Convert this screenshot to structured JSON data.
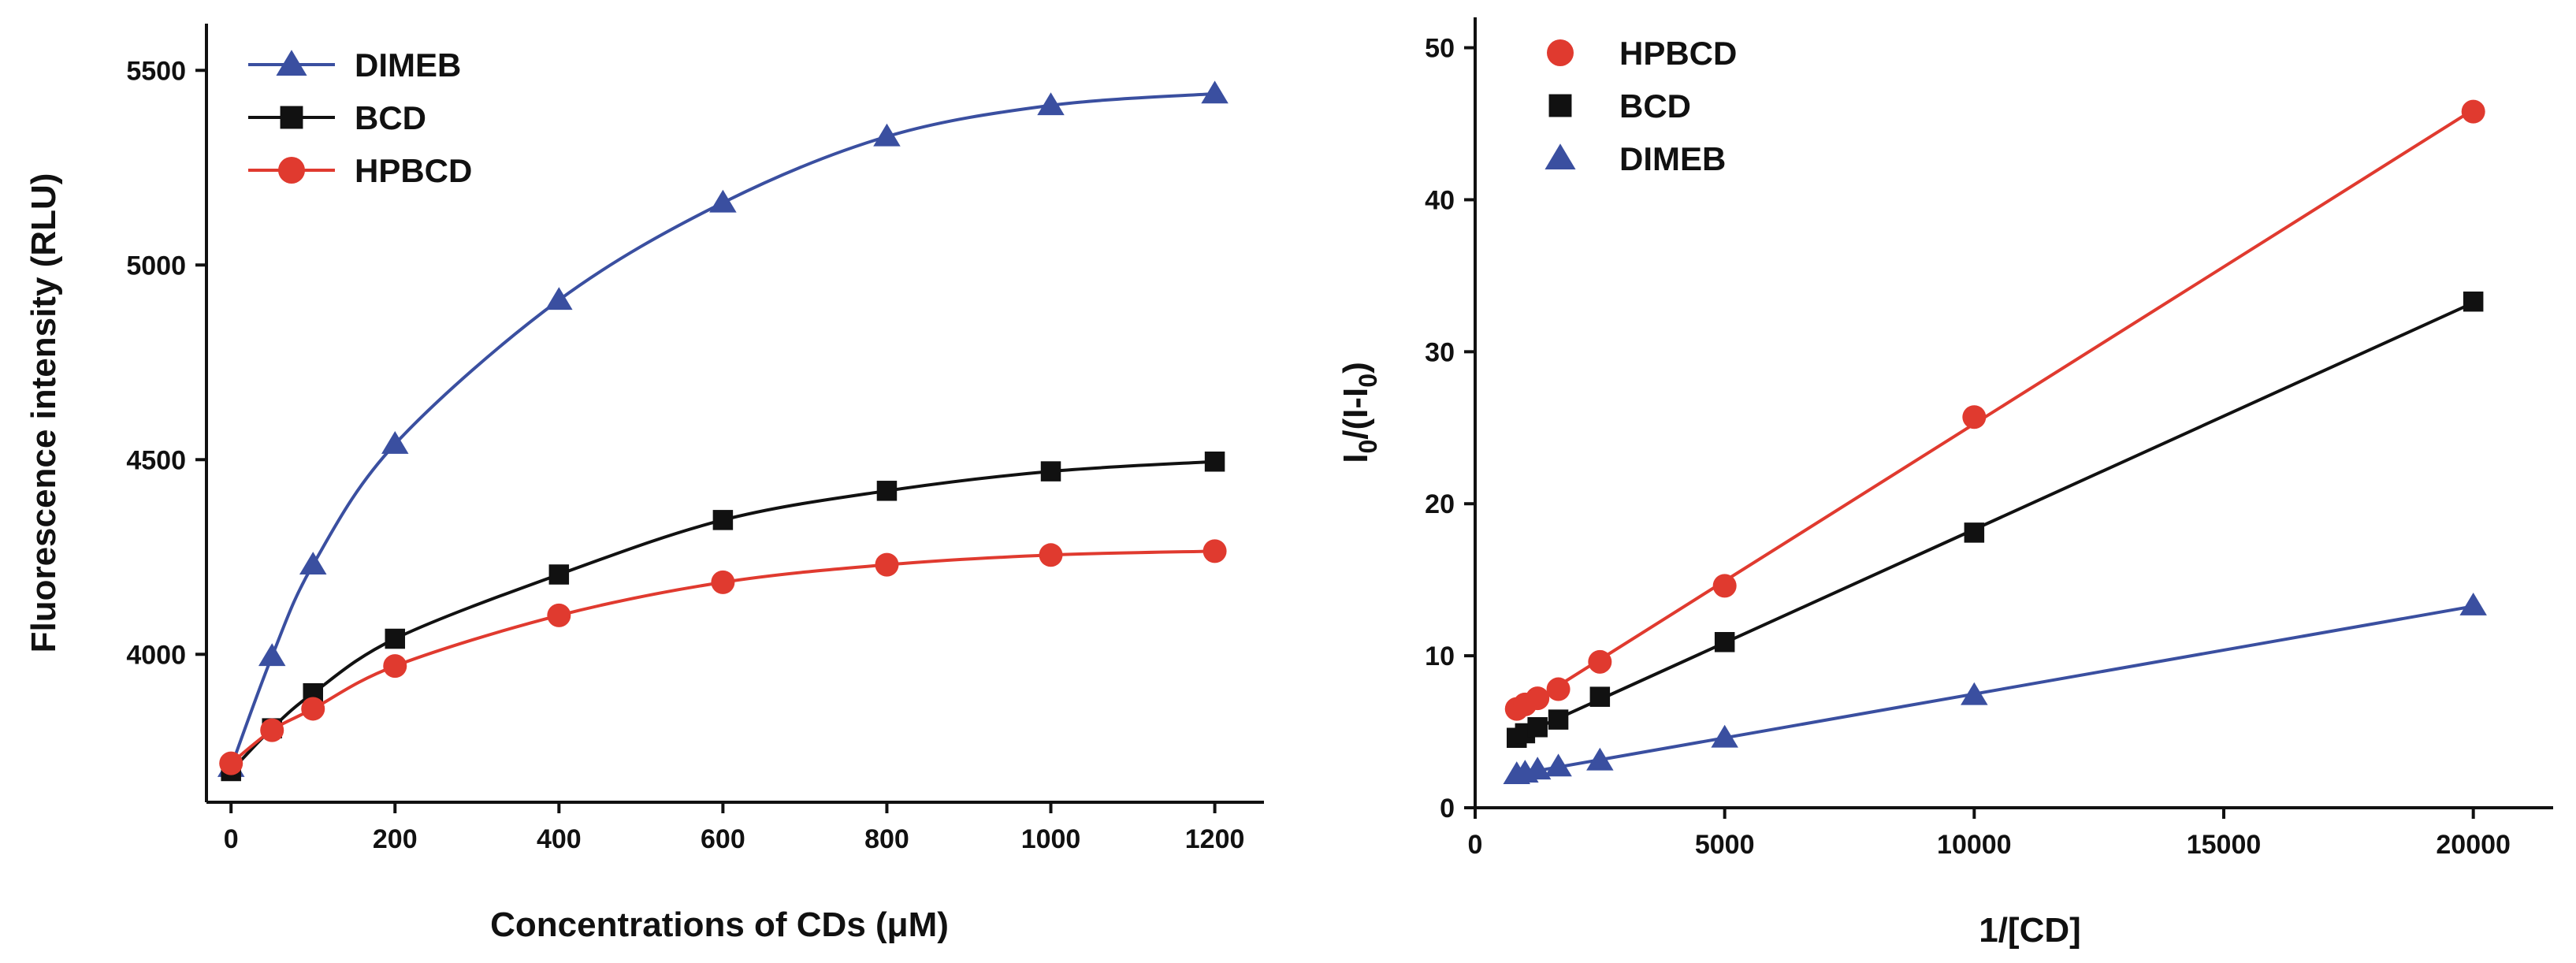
{
  "chart_data": [
    {
      "id": "left",
      "type": "line",
      "title": "",
      "xlabel": "Concentrations of CDs (μM)",
      "ylabel": "Fluorescence intensity (RLU)",
      "xlim": [
        -30,
        1260
      ],
      "ylim": [
        3620,
        5620
      ],
      "xticks": [
        0,
        200,
        400,
        600,
        800,
        1000,
        1200
      ],
      "yticks": [
        4000,
        4500,
        5000,
        5500
      ],
      "grid": false,
      "legend_position": "top-left",
      "series": [
        {
          "name": "DIMEB",
          "color": "#3a4fa0",
          "marker": "triangle",
          "x": [
            0,
            50,
            100,
            200,
            400,
            600,
            800,
            1000,
            1200
          ],
          "y": [
            3710,
            3995,
            4230,
            4540,
            4910,
            5160,
            5330,
            5410,
            5440
          ]
        },
        {
          "name": "BCD",
          "color": "#111111",
          "marker": "square",
          "x": [
            0,
            50,
            100,
            200,
            400,
            600,
            800,
            1000,
            1200
          ],
          "y": [
            3700,
            3810,
            3900,
            4040,
            4205,
            4345,
            4420,
            4470,
            4495
          ]
        },
        {
          "name": "HPBCD",
          "color": "#e03a2f",
          "marker": "circle",
          "x": [
            0,
            50,
            100,
            200,
            400,
            600,
            800,
            1000,
            1200
          ],
          "y": [
            3720,
            3805,
            3860,
            3970,
            4100,
            4185,
            4230,
            4255,
            4265
          ]
        }
      ]
    },
    {
      "id": "right",
      "type": "line",
      "title": "",
      "xlabel": "1/[CD]",
      "ylabel_parts": [
        "I",
        "0",
        "/(I-I",
        "0",
        ")"
      ],
      "xlim": [
        0,
        21600
      ],
      "ylim": [
        0,
        52
      ],
      "xticks": [
        0,
        5000,
        10000,
        15000,
        20000
      ],
      "yticks": [
        0,
        10,
        20,
        30,
        40,
        50
      ],
      "grid": false,
      "legend_position": "top-left",
      "series": [
        {
          "name": "HPBCD",
          "color": "#e03a2f",
          "marker": "circle",
          "x": [
            833,
            1000,
            1250,
            1667,
            2500,
            5000,
            10000,
            20000
          ],
          "y": [
            6.5,
            6.8,
            7.2,
            7.8,
            9.6,
            14.6,
            25.7,
            45.8
          ]
        },
        {
          "name": "BCD",
          "color": "#111111",
          "marker": "square",
          "x": [
            833,
            1000,
            1250,
            1667,
            2500,
            5000,
            10000,
            20000
          ],
          "y": [
            4.6,
            4.9,
            5.3,
            5.8,
            7.3,
            10.9,
            18.1,
            33.3
          ]
        },
        {
          "name": "DIMEB",
          "color": "#3a4fa0",
          "marker": "triangle",
          "x": [
            833,
            1000,
            1250,
            1667,
            2500,
            5000,
            10000,
            20000
          ],
          "y": [
            2.2,
            2.3,
            2.5,
            2.7,
            3.1,
            4.6,
            7.4,
            13.3
          ]
        }
      ]
    }
  ]
}
